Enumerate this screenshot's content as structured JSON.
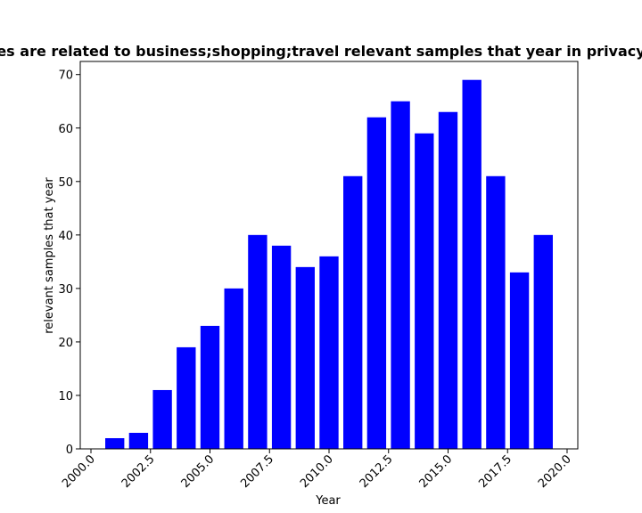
{
  "chart_data": {
    "type": "bar",
    "title": "es are related to business;shopping;travel relevant samples that year in privacy",
    "xlabel": "Year",
    "ylabel": "relevant samples that year",
    "x": [
      2001,
      2002,
      2003,
      2004,
      2005,
      2006,
      2007,
      2008,
      2009,
      2010,
      2011,
      2012,
      2013,
      2014,
      2015,
      2016,
      2017,
      2018,
      2019
    ],
    "values": [
      2,
      3,
      11,
      19,
      23,
      30,
      40,
      38,
      34,
      36,
      51,
      62,
      65,
      59,
      63,
      69,
      51,
      33,
      40
    ],
    "xlim": [
      1999.55,
      2020.45
    ],
    "ylim": [
      0,
      72.45
    ],
    "xticks": [
      2000.0,
      2002.5,
      2005.0,
      2007.5,
      2010.0,
      2012.5,
      2015.0,
      2017.5,
      2020.0
    ],
    "xtick_labels": [
      "2000.0",
      "2002.5",
      "2005.0",
      "2007.5",
      "2010.0",
      "2012.5",
      "2015.0",
      "2017.5",
      "2020.0"
    ],
    "yticks": [
      0,
      10,
      20,
      30,
      40,
      50,
      60,
      70
    ],
    "ytick_labels": [
      "0",
      "10",
      "20",
      "30",
      "40",
      "50",
      "60",
      "70"
    ],
    "bar_color": "#0000ff",
    "grid": false,
    "legend": "none"
  }
}
